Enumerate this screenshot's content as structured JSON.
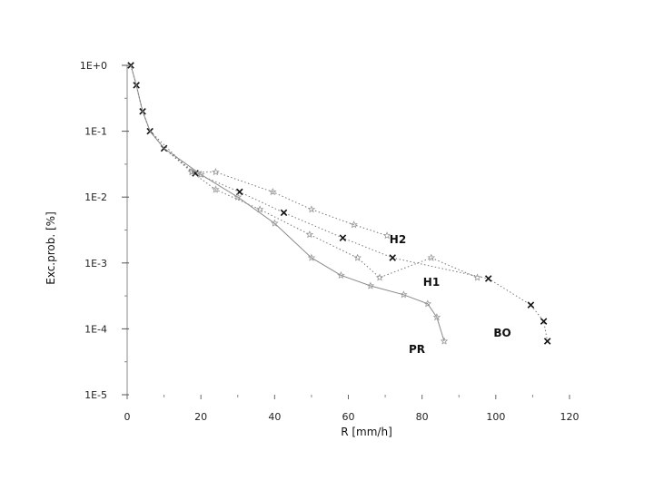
{
  "chart_data": {
    "type": "line",
    "xlabel": "R [mm/h]",
    "ylabel": "Exc.prob. [%]",
    "xlim": [
      0,
      120
    ],
    "ylim": [
      1e-05,
      1
    ],
    "yscale": "log",
    "x_ticks": [
      0,
      20,
      40,
      60,
      80,
      100,
      120
    ],
    "x_tick_labels": [
      "0",
      "20",
      "40",
      "60",
      "80",
      "100",
      "120"
    ],
    "y_ticks": [
      1,
      0.1,
      0.01,
      0.001,
      0.0001,
      1e-05
    ],
    "y_tick_labels": [
      "1E+0",
      "1E-1",
      "1E-2",
      "1E-3",
      "1E-4",
      "1E-5"
    ],
    "grid": false,
    "legend": "none",
    "series": [
      {
        "name": "BO",
        "style": "dotted",
        "marker": "x",
        "points": [
          [
            1,
            1
          ],
          [
            2.5,
            0.5
          ],
          [
            4.2,
            0.2
          ],
          [
            6.2,
            0.1
          ],
          [
            10,
            0.055
          ],
          [
            18.5,
            0.023
          ],
          [
            30.5,
            0.012
          ],
          [
            42.5,
            0.0058
          ],
          [
            58.5,
            0.0024
          ],
          [
            72,
            0.0012
          ],
          [
            98,
            0.00058
          ],
          [
            109.5,
            0.00023
          ],
          [
            113,
            0.00013
          ],
          [
            114,
            6.5e-05
          ]
        ]
      },
      {
        "name": "H2",
        "style": "dotted",
        "marker": "star",
        "points": [
          [
            1,
            1
          ],
          [
            2.5,
            0.5
          ],
          [
            4.2,
            0.2
          ],
          [
            6.2,
            0.1
          ],
          [
            11,
            0.055
          ],
          [
            17.5,
            0.024
          ],
          [
            24,
            0.024
          ],
          [
            39.5,
            0.012
          ],
          [
            50,
            0.0065
          ],
          [
            61.5,
            0.0038
          ],
          [
            70.5,
            0.0026
          ]
        ]
      },
      {
        "name": "H1",
        "style": "dotted",
        "marker": "star",
        "points": [
          [
            1,
            1
          ],
          [
            2.5,
            0.5
          ],
          [
            4.2,
            0.2
          ],
          [
            6.2,
            0.1
          ],
          [
            10,
            0.055
          ],
          [
            17.5,
            0.024
          ],
          [
            24,
            0.013
          ],
          [
            36,
            0.0065
          ],
          [
            49.5,
            0.0027
          ],
          [
            62.5,
            0.0012
          ],
          [
            68.5,
            0.0006
          ],
          [
            82.5,
            0.0012
          ],
          [
            95,
            0.0006
          ]
        ]
      },
      {
        "name": "PR",
        "style": "solid",
        "marker": "star",
        "points": [
          [
            1,
            1
          ],
          [
            2.5,
            0.5
          ],
          [
            4.2,
            0.2
          ],
          [
            6.2,
            0.1
          ],
          [
            10,
            0.055
          ],
          [
            20,
            0.022
          ],
          [
            30,
            0.01
          ],
          [
            40,
            0.004
          ],
          [
            50,
            0.0012
          ],
          [
            58,
            0.00065
          ],
          [
            66,
            0.00045
          ],
          [
            75,
            0.00033
          ],
          [
            81.5,
            0.00024
          ],
          [
            84,
            0.00015
          ],
          [
            86,
            6.5e-05
          ]
        ]
      }
    ]
  }
}
